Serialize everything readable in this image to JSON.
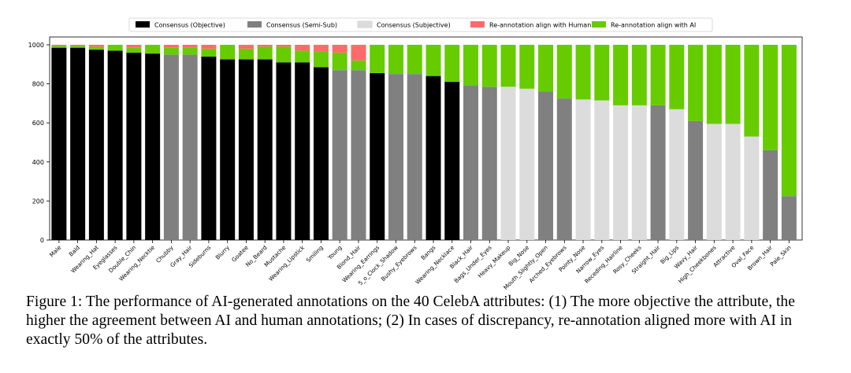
{
  "caption": "Figure 1: The performance of AI-generated annotations on the 40 CelebA attributes: (1) The more objective the attribute, the higher the agreement between AI and human annotations; (2) In cases of discrepancy, re-annotation aligned more with AI in exactly 50% of the attributes.",
  "chart_data": {
    "type": "bar",
    "stacked": true,
    "title": "",
    "xlabel": "",
    "ylabel": "",
    "ylim": [
      0,
      1000
    ],
    "yticks": [
      0,
      200,
      400,
      600,
      800,
      1000
    ],
    "legend_position": "top",
    "legend": [
      {
        "name": "Consensus (Objective)",
        "color": "#000000"
      },
      {
        "name": "Consensus (Semi-Sub)",
        "color": "#808080"
      },
      {
        "name": "Consensus (Subjective)",
        "color": "#dcdcdc"
      },
      {
        "name": "Re-annotation align with Human",
        "color": "#ff6b6b"
      },
      {
        "name": "Re-annotation align with AI",
        "color": "#66cc00"
      }
    ],
    "categories": [
      "Male",
      "Bald",
      "Wearing_Hat",
      "Eyeglasses",
      "Double_Chin",
      "Wearing_Necktie",
      "Chubby",
      "Gray_Hair",
      "Sideburns",
      "Blurry",
      "Goatee",
      "No_Beard",
      "Mustache",
      "Wearing_Lipstick",
      "Smiling",
      "Young",
      "Blond_Hair",
      "Wearing_Earrings",
      "5_o_Clock_Shadow",
      "Bushy_Eyebrows",
      "Bangs",
      "Wearing_Necklace",
      "Black_Hair",
      "Bags_Under_Eyes",
      "Heavy_Makeup",
      "Big_Nose",
      "Mouth_Slightly_Open",
      "Arched_Eyebrows",
      "Pointy_Nose",
      "Narrow_Eyes",
      "Receding_Hairline",
      "Rosy_Cheeks",
      "Straight_Hair",
      "Big_Lips",
      "Wavy_Hair",
      "High_Cheekbones",
      "Attractive",
      "Oval_Face",
      "Brown_Hair",
      "Pale_Skin"
    ],
    "consensus_type": [
      "objective",
      "objective",
      "objective",
      "objective",
      "objective",
      "objective",
      "semi",
      "semi",
      "objective",
      "objective",
      "objective",
      "objective",
      "objective",
      "objective",
      "objective",
      "semi",
      "semi",
      "objective",
      "semi",
      "semi",
      "objective",
      "objective",
      "semi",
      "semi",
      "subjective",
      "subjective",
      "semi",
      "semi",
      "subjective",
      "subjective",
      "subjective",
      "subjective",
      "semi",
      "subjective",
      "semi",
      "subjective",
      "subjective",
      "subjective",
      "semi",
      "semi"
    ],
    "consensus": [
      985,
      985,
      975,
      970,
      960,
      955,
      950,
      950,
      940,
      925,
      925,
      925,
      910,
      910,
      885,
      870,
      870,
      855,
      850,
      850,
      840,
      810,
      790,
      785,
      785,
      775,
      760,
      725,
      720,
      715,
      690,
      690,
      690,
      670,
      610,
      595,
      595,
      530,
      460,
      225
    ],
    "align_human": [
      5,
      5,
      10,
      0,
      15,
      0,
      15,
      15,
      20,
      0,
      20,
      10,
      10,
      30,
      35,
      40,
      80,
      0,
      0,
      0,
      0,
      0,
      0,
      0,
      0,
      0,
      0,
      0,
      0,
      0,
      0,
      0,
      0,
      0,
      0,
      0,
      0,
      0,
      0,
      0
    ],
    "align_ai": [
      10,
      10,
      15,
      30,
      25,
      45,
      35,
      35,
      40,
      75,
      55,
      65,
      80,
      60,
      80,
      90,
      50,
      145,
      150,
      150,
      160,
      190,
      210,
      215,
      215,
      225,
      240,
      275,
      280,
      285,
      310,
      310,
      310,
      330,
      390,
      405,
      405,
      470,
      540,
      775
    ],
    "series_colors": {
      "objective": "#000000",
      "semi": "#808080",
      "subjective": "#dcdcdc",
      "human": "#ff6b6b",
      "ai": "#66cc00"
    }
  }
}
